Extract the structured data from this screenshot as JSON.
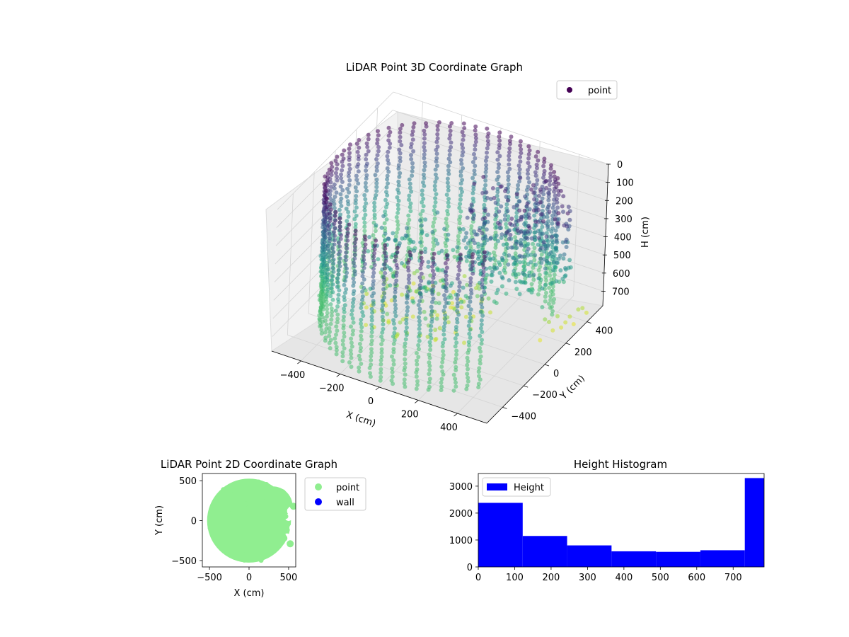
{
  "chart_data": [
    {
      "type": "scatter3d",
      "title": "LiDAR Point 3D Coordinate Graph",
      "xlabel": "X (cm)",
      "ylabel": "Y (cm)",
      "zlabel": "H (cm)",
      "x_ticks": [
        -400,
        -200,
        0,
        200,
        400
      ],
      "y_ticks": [
        -400,
        -200,
        0,
        200,
        400
      ],
      "z_ticks": [
        0,
        100,
        200,
        300,
        400,
        500,
        600,
        700
      ],
      "xlim": [
        -550,
        550
      ],
      "ylim": [
        -550,
        550
      ],
      "zlim": [
        780,
        0
      ],
      "z_inverted": true,
      "colormap": "viridis",
      "legend": {
        "placement": "top-right",
        "entries": [
          {
            "name": "point",
            "color": "#440154"
          }
        ]
      },
      "structure": {
        "wall_radius": 530,
        "wall_arc_deg": [
          40,
          320
        ],
        "outer_cluster_center": [
          300,
          180
        ],
        "outer_cluster_radius": 250
      },
      "grid": true
    },
    {
      "type": "scatter",
      "title": "LiDAR Point 2D Coordinate Graph",
      "xlabel": "X (cm)",
      "ylabel": "Y (cm)",
      "x_ticks": [
        -500,
        0,
        500
      ],
      "y_ticks": [
        -500,
        0,
        500
      ],
      "xlim": [
        -590,
        590
      ],
      "ylim": [
        -580,
        590
      ],
      "legend": {
        "placement": "outside-right",
        "entries": [
          {
            "name": "point",
            "color": "#90ee90"
          },
          {
            "name": "wall",
            "color": "#0000ff"
          }
        ]
      },
      "series": [
        {
          "name": "point",
          "color": "#90ee90"
        },
        {
          "name": "wall",
          "color": "#0000ff"
        }
      ],
      "grid": false
    },
    {
      "type": "bar",
      "title": "Height Histogram",
      "bin_edges": [
        0,
        122,
        244,
        366,
        488,
        610,
        732,
        785
      ],
      "values": [
        2380,
        1150,
        800,
        580,
        560,
        620,
        3300
      ],
      "x_ticks": [
        0,
        100,
        200,
        300,
        400,
        500,
        600,
        700
      ],
      "y_ticks": [
        0,
        1000,
        2000,
        3000
      ],
      "xlim": [
        0,
        785
      ],
      "ylim": [
        0,
        3470
      ],
      "color": "#0000ff",
      "legend": {
        "placement": "top-left",
        "entries": [
          {
            "name": "Height",
            "color": "#0000ff"
          }
        ]
      },
      "grid": false
    }
  ]
}
